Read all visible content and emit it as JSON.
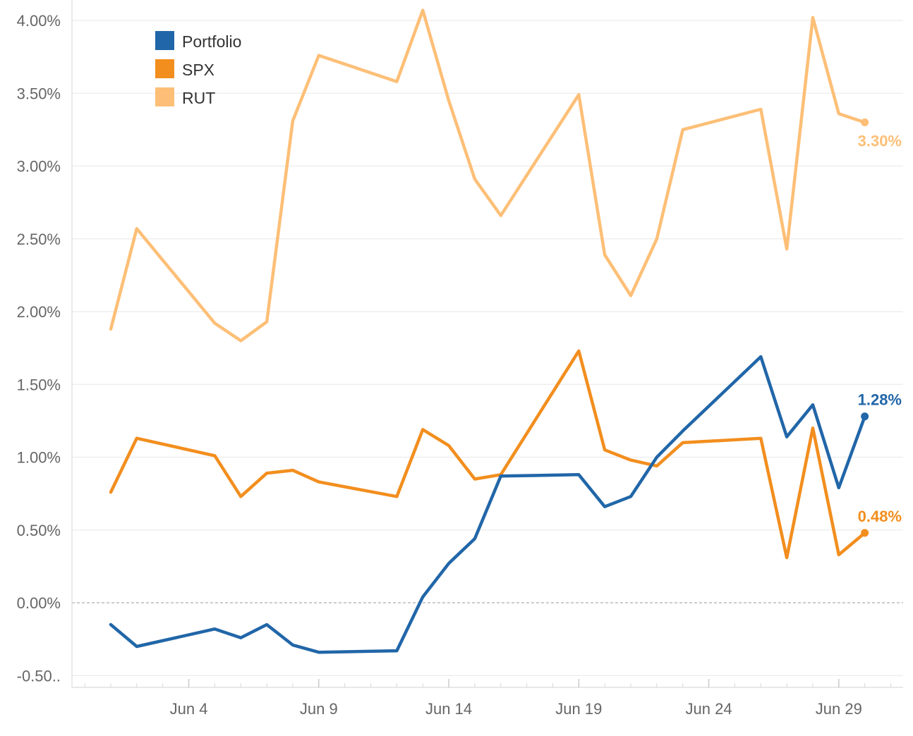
{
  "chart_data": {
    "type": "line",
    "title": "",
    "xlabel": "",
    "ylabel": "",
    "x": [
      "Jun 1",
      "Jun 2",
      "Jun 5",
      "Jun 6",
      "Jun 7",
      "Jun 8",
      "Jun 9",
      "Jun 12",
      "Jun 13",
      "Jun 14",
      "Jun 15",
      "Jun 16",
      "Jun 19",
      "Jun 20",
      "Jun 21",
      "Jun 22",
      "Jun 23",
      "Jun 26",
      "Jun 27",
      "Jun 28",
      "Jun 29",
      "Jun 30"
    ],
    "x_ticks": [
      "Jun 4",
      "Jun 9",
      "Jun 14",
      "Jun 19",
      "Jun 24",
      "Jun 29"
    ],
    "y_ticks": [
      "4.00%",
      "3.50%",
      "3.00%",
      "2.50%",
      "2.00%",
      "1.50%",
      "1.00%",
      "0.50%",
      "0.00%",
      "-0.50.."
    ],
    "ylim": [
      -0.5,
      4.1
    ],
    "grid": true,
    "legend_position": "top-left",
    "series": [
      {
        "name": "Portfolio",
        "color": "#2166a8",
        "values": [
          -0.15,
          -0.3,
          -0.18,
          -0.24,
          -0.15,
          -0.29,
          -0.34,
          -0.33,
          0.04,
          0.27,
          0.44,
          0.87,
          0.88,
          0.66,
          0.73,
          1.0,
          1.18,
          1.69,
          1.14,
          1.36,
          0.79,
          1.28
        ],
        "end_label": "1.28%"
      },
      {
        "name": "SPX",
        "color": "#f28e1e",
        "values": [
          0.76,
          1.13,
          1.01,
          0.73,
          0.89,
          0.91,
          0.83,
          0.73,
          1.19,
          1.08,
          0.85,
          0.88,
          1.73,
          1.05,
          0.98,
          0.94,
          1.1,
          1.13,
          0.31,
          1.2,
          0.33,
          0.48
        ],
        "end_label": "0.48%"
      },
      {
        "name": "RUT",
        "color": "#fdbf77",
        "values": [
          1.88,
          2.57,
          1.92,
          1.8,
          1.93,
          3.31,
          3.76,
          3.58,
          4.07,
          3.45,
          2.91,
          2.66,
          3.49,
          2.39,
          2.11,
          2.5,
          3.25,
          3.39,
          2.43,
          4.02,
          3.36,
          3.3
        ],
        "end_label": "3.30%"
      }
    ]
  }
}
